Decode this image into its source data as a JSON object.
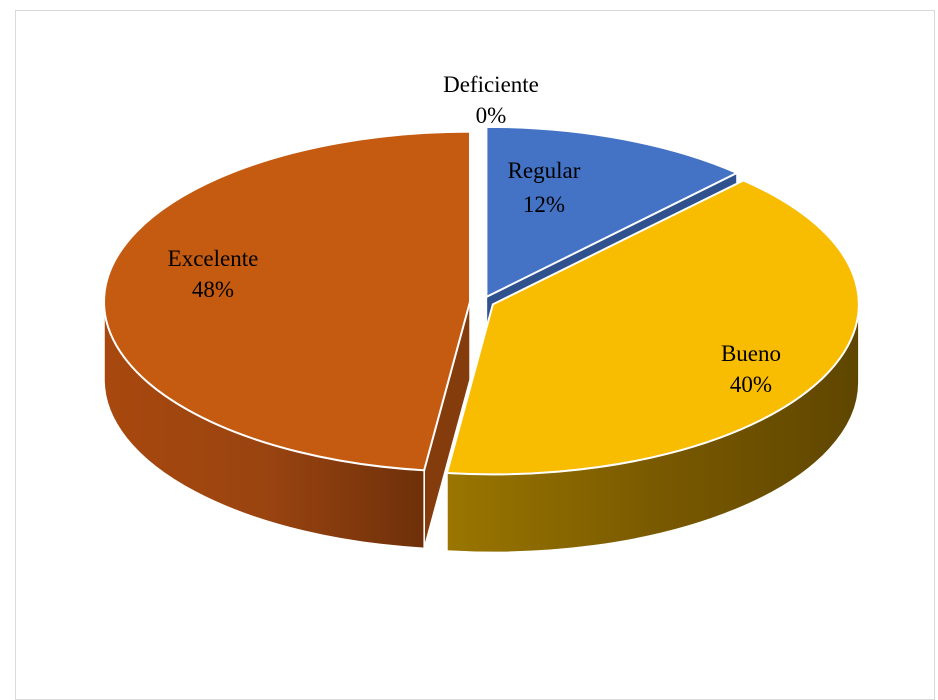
{
  "chart_data": {
    "type": "pie",
    "style": "3d-exploded",
    "categories": [
      "Deficiente",
      "Regular",
      "Bueno",
      "Excelente"
    ],
    "values": [
      0,
      12,
      40,
      48
    ],
    "unit": "%",
    "labels": [
      {
        "name": "Deficiente",
        "value": "0%"
      },
      {
        "name": "Regular",
        "value": "12%"
      },
      {
        "name": "Bueno",
        "value": "40%"
      },
      {
        "name": "Excelente",
        "value": "48%"
      }
    ],
    "colors": {
      "Deficiente": "#7f7f7f",
      "Regular": "#4472c4",
      "Bueno": "#f8bc00",
      "Excelente": "#c55a11"
    },
    "side_colors": {
      "Regular": "#2f528f",
      "Bueno": "#7f6000",
      "Excelente": "#843c0c"
    },
    "legend": "none",
    "title": ""
  }
}
